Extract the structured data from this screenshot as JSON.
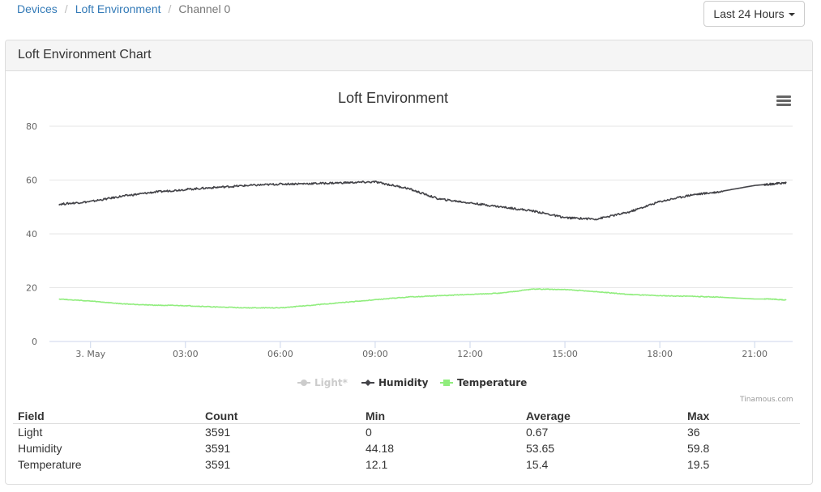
{
  "breadcrumb": {
    "devices": "Devices",
    "loft": "Loft Environment",
    "channel": "Channel 0"
  },
  "range_button": {
    "label": "Last 24 Hours"
  },
  "panel": {
    "title": "Loft Environment Chart"
  },
  "chart_data": {
    "type": "line",
    "title": "Loft Environment",
    "xlabel": "",
    "ylabel": "",
    "ylim": [
      0,
      80
    ],
    "yticks": [
      "0",
      "20",
      "40",
      "60",
      "80"
    ],
    "xticks": [
      "3. May",
      "03:00",
      "06:00",
      "09:00",
      "12:00",
      "15:00",
      "18:00",
      "21:00"
    ],
    "x_hours": [
      -1,
      0,
      1,
      2,
      3,
      4,
      5,
      6,
      7,
      8,
      9,
      10,
      11,
      12,
      13,
      14,
      15,
      16,
      17,
      18,
      19,
      19.8,
      21,
      21.5,
      22
    ],
    "series": [
      {
        "name": "Light*",
        "color": "#cccccc",
        "values": [
          0,
          0,
          0,
          0,
          0,
          0,
          0,
          0,
          0,
          0,
          0,
          0,
          0,
          0,
          0,
          0,
          0,
          0,
          0,
          0,
          0,
          0,
          0,
          0,
          0
        ],
        "visible": false
      },
      {
        "name": "Humidity",
        "color": "#434348",
        "values": [
          51,
          52,
          54,
          55.5,
          56.5,
          57.3,
          58,
          58.5,
          58.7,
          59,
          59.3,
          57,
          53,
          51.5,
          50,
          48.5,
          46,
          45.5,
          48,
          52,
          54.5,
          55.5,
          58,
          58.5,
          59
        ]
      },
      {
        "name": "Temperature",
        "color": "#90ed7d",
        "values": [
          15.8,
          15,
          14,
          13.5,
          13.3,
          12.8,
          12.5,
          12.5,
          13.5,
          14.5,
          15.5,
          16.5,
          17,
          17.5,
          18,
          19.5,
          19.3,
          18.5,
          17.5,
          17,
          16.8,
          16.5,
          15.8,
          15.8,
          15.4
        ]
      }
    ],
    "grid": true,
    "legend_position": "bottom-center"
  },
  "credits": "Tinamous.com",
  "stats": {
    "headers": [
      "Field",
      "Count",
      "Min",
      "Average",
      "Max"
    ],
    "rows": [
      [
        "Light",
        "3591",
        "0",
        "0.67",
        "36"
      ],
      [
        "Humidity",
        "3591",
        "44.18",
        "53.65",
        "59.8"
      ],
      [
        "Temperature",
        "3591",
        "12.1",
        "15.4",
        "19.5"
      ]
    ]
  }
}
